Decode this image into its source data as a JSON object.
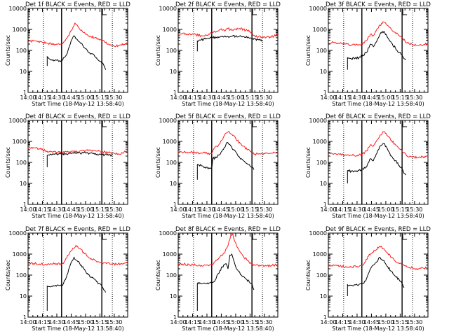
{
  "figure": {
    "xlabel": "Start Time (18-May-12 13:58:40)",
    "ylabel": "Counts/sec",
    "x_tick_labels": [
      "14:00",
      "14:15",
      "14:30",
      "14:45",
      "15:00",
      "15:15",
      "15:30"
    ],
    "y_tick_labels": [
      "1",
      "10",
      "100",
      "1000",
      "10000"
    ],
    "colors": {
      "events": "#000000",
      "lld": "#ff1a1a"
    }
  },
  "chart_data": [
    {
      "type": "line",
      "title": "Det 1f BLACK = Events, RED = LLD",
      "xlabel": "Start Time (18-May-12 13:58:40)",
      "ylabel": "Counts/sec",
      "x_unit": "minutes since 14:00",
      "xlim": [
        0,
        104
      ],
      "ylim": [
        1,
        10000
      ],
      "yscale": "log",
      "grid": false,
      "dotted_lines": [
        16,
        88
      ],
      "solid_lines": [
        35,
        77
      ],
      "series": [
        {
          "name": "Events",
          "color": "#000000",
          "x": [
            20,
            20,
            22,
            26,
            30,
            33,
            36,
            37,
            40,
            43,
            46,
            48,
            51,
            54,
            57,
            60,
            63,
            66,
            69,
            72,
            75,
            77,
            79,
            81
          ],
          "y": [
            18,
            50,
            40,
            36,
            34,
            32,
            34,
            45,
            60,
            150,
            350,
            500,
            350,
            250,
            180,
            120,
            80,
            70,
            60,
            40,
            30,
            25,
            20,
            12
          ]
        },
        {
          "name": "LLD",
          "color": "#ff1a1a",
          "x": [
            0,
            5,
            10,
            15,
            20,
            25,
            30,
            33,
            35,
            38,
            42,
            46,
            49,
            52,
            55,
            58,
            62,
            66,
            70,
            74,
            77,
            80,
            84,
            88,
            92,
            96,
            100,
            104
          ],
          "y": [
            270,
            280,
            260,
            240,
            220,
            210,
            200,
            190,
            200,
            280,
            500,
            1000,
            2000,
            1400,
            900,
            700,
            550,
            450,
            400,
            350,
            320,
            250,
            200,
            170,
            160,
            180,
            200,
            230
          ]
        }
      ]
    },
    {
      "type": "line",
      "title": "Det 2f BLACK = Events, RED = LLD",
      "xlabel": "Start Time (18-May-12 13:58:40)",
      "ylabel": "Counts/sec",
      "x_unit": "minutes since 14:00",
      "xlim": [
        0,
        104
      ],
      "ylim": [
        1,
        10000
      ],
      "yscale": "log",
      "grid": false,
      "dotted_lines": [
        16,
        88
      ],
      "solid_lines": [
        35,
        77
      ],
      "series": [
        {
          "name": "Events",
          "color": "#000000",
          "x": [
            20,
            20,
            24,
            28,
            32,
            36,
            40,
            44,
            48,
            52,
            56,
            60,
            64,
            68,
            72,
            76,
            80,
            84,
            88
          ],
          "y": [
            90,
            280,
            320,
            350,
            380,
            400,
            420,
            440,
            450,
            460,
            470,
            480,
            480,
            460,
            400,
            380,
            350,
            320,
            300
          ]
        },
        {
          "name": "LLD",
          "color": "#ff1a1a",
          "x": [
            0,
            8,
            16,
            24,
            30,
            36,
            40,
            44,
            48,
            52,
            56,
            60,
            64,
            68,
            72,
            76,
            80,
            84,
            88,
            92,
            96,
            100,
            104
          ],
          "y": [
            650,
            620,
            580,
            500,
            520,
            700,
            800,
            1000,
            900,
            1100,
            900,
            1000,
            1100,
            1000,
            900,
            700,
            500,
            450,
            430,
            430,
            440,
            480,
            520
          ]
        }
      ]
    },
    {
      "type": "line",
      "title": "Det 3f BLACK = Events, RED = LLD",
      "xlabel": "Start Time (18-May-12 13:58:40)",
      "ylabel": "Counts/sec",
      "x_unit": "minutes since 14:00",
      "xlim": [
        0,
        104
      ],
      "ylim": [
        1,
        10000
      ],
      "yscale": "log",
      "grid": false,
      "dotted_lines": [
        16,
        88
      ],
      "solid_lines": [
        35,
        77
      ],
      "series": [
        {
          "name": "Events",
          "color": "#000000",
          "x": [
            20,
            20,
            24,
            28,
            32,
            36,
            40,
            44,
            47,
            50,
            54,
            58,
            62,
            66,
            70,
            74,
            77,
            79,
            81
          ],
          "y": [
            12,
            45,
            40,
            42,
            45,
            60,
            80,
            200,
            150,
            250,
            600,
            800,
            400,
            220,
            130,
            80,
            60,
            40,
            35
          ]
        },
        {
          "name": "LLD",
          "color": "#ff1a1a",
          "x": [
            0,
            6,
            12,
            18,
            24,
            30,
            35,
            40,
            44,
            47,
            50,
            54,
            58,
            62,
            66,
            70,
            74,
            77,
            82,
            88,
            94,
            100,
            104
          ],
          "y": [
            230,
            240,
            220,
            200,
            180,
            190,
            200,
            300,
            600,
            500,
            900,
            1600,
            2200,
            1500,
            1000,
            700,
            500,
            400,
            230,
            180,
            170,
            190,
            200
          ]
        }
      ]
    },
    {
      "type": "line",
      "title": "Det 4f BLACK = Events, RED = LLD",
      "xlabel": "Start Time (18-May-12 13:58:40)",
      "ylabel": "Counts/sec",
      "x_unit": "minutes since 14:00",
      "xlim": [
        0,
        104
      ],
      "ylim": [
        1,
        10000
      ],
      "yscale": "log",
      "grid": false,
      "dotted_lines": [
        16,
        88
      ],
      "solid_lines": [
        35,
        77
      ],
      "series": [
        {
          "name": "Events",
          "color": "#000000",
          "x": [
            20,
            20,
            24,
            28,
            32,
            36,
            40,
            44,
            48,
            52,
            56,
            60,
            64,
            68,
            72,
            76,
            80,
            84,
            88
          ],
          "y": [
            60,
            220,
            240,
            240,
            250,
            260,
            260,
            270,
            270,
            280,
            280,
            280,
            270,
            260,
            250,
            240,
            230,
            220,
            210
          ]
        },
        {
          "name": "LLD",
          "color": "#ff1a1a",
          "x": [
            0,
            6,
            12,
            18,
            24,
            30,
            36,
            42,
            48,
            54,
            60,
            66,
            72,
            78,
            84,
            90,
            96,
            100,
            104
          ],
          "y": [
            500,
            480,
            430,
            360,
            320,
            300,
            300,
            310,
            330,
            350,
            360,
            360,
            350,
            320,
            300,
            270,
            240,
            300,
            360
          ]
        }
      ]
    },
    {
      "type": "line",
      "title": "Det 5f BLACK = Events, RED = LLD",
      "xlabel": "Start Time (18-May-12 13:58:40)",
      "ylabel": "Counts/sec",
      "x_unit": "minutes since 14:00",
      "xlim": [
        0,
        104
      ],
      "ylim": [
        1,
        10000
      ],
      "yscale": "log",
      "grid": false,
      "dotted_lines": [
        16,
        88
      ],
      "solid_lines": [
        35,
        77
      ],
      "series": [
        {
          "name": "Events",
          "color": "#000000",
          "x": [
            20,
            20,
            24,
            28,
            32,
            35,
            36,
            40,
            44,
            48,
            51,
            54,
            58,
            62,
            66,
            70,
            74,
            77,
            79
          ],
          "y": [
            15,
            80,
            70,
            60,
            55,
            50,
            150,
            180,
            250,
            500,
            900,
            700,
            400,
            220,
            150,
            100,
            80,
            60,
            45
          ]
        },
        {
          "name": "LLD",
          "color": "#ff1a1a",
          "x": [
            0,
            6,
            12,
            18,
            24,
            30,
            35,
            38,
            42,
            46,
            50,
            53,
            56,
            60,
            64,
            68,
            72,
            76,
            80,
            86,
            92,
            98,
            104
          ],
          "y": [
            300,
            310,
            300,
            290,
            280,
            270,
            260,
            500,
            650,
            1200,
            2500,
            3000,
            2200,
            1400,
            900,
            600,
            400,
            320,
            250,
            250,
            270,
            280,
            300
          ]
        }
      ]
    },
    {
      "type": "line",
      "title": "Det 6f BLACK = Events, RED = LLD",
      "xlabel": "Start Time (18-May-12 13:58:40)",
      "ylabel": "Counts/sec",
      "x_unit": "minutes since 14:00",
      "xlim": [
        0,
        104
      ],
      "ylim": [
        1,
        10000
      ],
      "yscale": "log",
      "grid": false,
      "dotted_lines": [
        16,
        88
      ],
      "solid_lines": [
        35,
        77
      ],
      "series": [
        {
          "name": "Events",
          "color": "#000000",
          "x": [
            20,
            20,
            24,
            28,
            32,
            36,
            40,
            44,
            47,
            50,
            54,
            58,
            62,
            66,
            70,
            74,
            77,
            79,
            81
          ],
          "y": [
            10,
            40,
            38,
            40,
            42,
            50,
            60,
            150,
            120,
            250,
            600,
            800,
            400,
            200,
            120,
            70,
            50,
            30,
            25
          ]
        },
        {
          "name": "LLD",
          "color": "#ff1a1a",
          "x": [
            0,
            6,
            12,
            18,
            24,
            30,
            35,
            40,
            44,
            47,
            50,
            54,
            58,
            62,
            66,
            70,
            74,
            77,
            82,
            88,
            94,
            100,
            104
          ],
          "y": [
            250,
            260,
            240,
            230,
            220,
            220,
            230,
            350,
            700,
            600,
            1000,
            2000,
            2800,
            1800,
            1100,
            700,
            450,
            350,
            200,
            180,
            170,
            190,
            200
          ]
        }
      ]
    },
    {
      "type": "line",
      "title": "Det 7f BLACK = Events, RED = LLD",
      "xlabel": "Start Time (18-May-12 13:58:40)",
      "ylabel": "Counts/sec",
      "x_unit": "minutes since 14:00",
      "xlim": [
        0,
        104
      ],
      "ylim": [
        1,
        10000
      ],
      "yscale": "log",
      "grid": false,
      "dotted_lines": [
        16,
        88
      ],
      "solid_lines": [
        35,
        77
      ],
      "series": [
        {
          "name": "Events",
          "color": "#000000",
          "x": [
            20,
            20,
            24,
            28,
            32,
            35,
            37,
            40,
            44,
            48,
            51,
            54,
            58,
            62,
            66,
            70,
            74,
            77,
            79,
            81
          ],
          "y": [
            2,
            30,
            28,
            30,
            32,
            30,
            40,
            80,
            300,
            700,
            500,
            350,
            200,
            120,
            80,
            60,
            40,
            30,
            20,
            15
          ]
        },
        {
          "name": "LLD",
          "color": "#ff1a1a",
          "x": [
            0,
            6,
            12,
            18,
            24,
            30,
            35,
            38,
            42,
            46,
            50,
            54,
            58,
            62,
            66,
            70,
            74,
            77,
            82,
            88,
            94,
            100,
            104
          ],
          "y": [
            350,
            360,
            340,
            330,
            340,
            350,
            330,
            450,
            900,
            1600,
            2600,
            1800,
            1200,
            800,
            600,
            500,
            420,
            380,
            350,
            330,
            340,
            350,
            370
          ]
        }
      ]
    },
    {
      "type": "line",
      "title": "Det 8f BLACK = Events, RED = LLD",
      "xlabel": "Start Time (18-May-12 13:58:40)",
      "ylabel": "Counts/sec",
      "x_unit": "minutes since 14:00",
      "xlim": [
        0,
        104
      ],
      "ylim": [
        1,
        10000
      ],
      "yscale": "log",
      "grid": false,
      "dotted_lines": [
        16,
        88
      ],
      "solid_lines": [
        35,
        77
      ],
      "series": [
        {
          "name": "Events",
          "color": "#000000",
          "x": [
            20,
            20,
            24,
            28,
            32,
            35,
            38,
            42,
            46,
            50,
            52,
            54,
            56,
            58,
            60,
            63,
            66,
            70,
            74,
            77,
            79
          ],
          "y": [
            2,
            40,
            38,
            40,
            42,
            45,
            50,
            120,
            250,
            350,
            200,
            900,
            1000,
            500,
            250,
            150,
            100,
            70,
            50,
            40,
            20
          ]
        },
        {
          "name": "LLD",
          "color": "#ff1a1a",
          "x": [
            0,
            6,
            12,
            18,
            24,
            30,
            35,
            40,
            44,
            48,
            52,
            55,
            57,
            59,
            62,
            65,
            68,
            72,
            76,
            80,
            86,
            92,
            98,
            104
          ],
          "y": [
            320,
            330,
            310,
            300,
            290,
            300,
            320,
            500,
            800,
            1100,
            2500,
            8000,
            9500,
            4000,
            2000,
            1200,
            800,
            500,
            350,
            300,
            280,
            270,
            290,
            300
          ]
        }
      ]
    },
    {
      "type": "line",
      "title": "Det 9f BLACK = Events, RED = LLD",
      "xlabel": "Start Time (18-May-12 13:58:40)",
      "ylabel": "Counts/sec",
      "x_unit": "minutes since 14:00",
      "xlim": [
        0,
        104
      ],
      "ylim": [
        1,
        10000
      ],
      "yscale": "log",
      "grid": false,
      "dotted_lines": [
        16,
        88
      ],
      "solid_lines": [
        35,
        77
      ],
      "series": [
        {
          "name": "Events",
          "color": "#000000",
          "x": [
            20,
            20,
            24,
            28,
            32,
            35,
            37,
            40,
            44,
            47,
            50,
            54,
            58,
            62,
            66,
            70,
            74,
            77,
            79
          ],
          "y": [
            10,
            35,
            33,
            35,
            36,
            38,
            40,
            70,
            200,
            300,
            400,
            700,
            500,
            250,
            150,
            90,
            60,
            40,
            25
          ]
        },
        {
          "name": "LLD",
          "color": "#ff1a1a",
          "x": [
            0,
            6,
            12,
            18,
            24,
            30,
            35,
            38,
            42,
            46,
            50,
            54,
            58,
            62,
            66,
            70,
            74,
            77,
            82,
            88,
            94,
            100,
            104
          ],
          "y": [
            300,
            290,
            270,
            250,
            240,
            260,
            280,
            400,
            800,
            1200,
            1600,
            2400,
            1800,
            1100,
            700,
            450,
            350,
            300,
            250,
            220,
            200,
            210,
            230
          ]
        }
      ]
    }
  ]
}
